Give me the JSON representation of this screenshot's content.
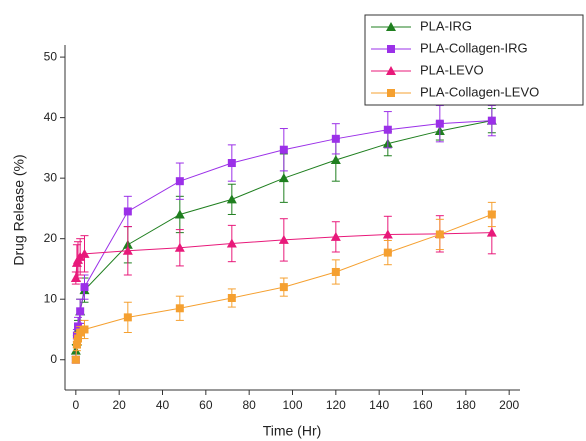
{
  "chart_data": {
    "type": "line",
    "x_label": "Time (Hr)",
    "y_label": "Drug Release (%)",
    "x": [
      0,
      0.5,
      1,
      2,
      4,
      24,
      48,
      72,
      96,
      120,
      144,
      168,
      192
    ],
    "series": [
      {
        "name": "PLA-IRG",
        "color": "#1f7f1f",
        "marker": "triangle",
        "values": [
          1.5,
          3,
          5,
          8,
          11.5,
          19,
          24,
          26.5,
          30,
          33,
          35.7,
          37.8,
          39.5
        ],
        "errors": [
          1,
          1,
          1.5,
          2,
          2,
          3,
          3,
          2.5,
          4,
          3.5,
          2,
          1.5,
          2
        ]
      },
      {
        "name": "PLA-Collagen-IRG",
        "color": "#9b30e8",
        "marker": "square",
        "values": [
          0,
          4,
          5.5,
          8,
          12,
          24.5,
          29.5,
          32.5,
          34.7,
          36.5,
          38,
          39,
          39.5
        ],
        "errors": [
          0.5,
          1,
          1.5,
          2,
          2,
          2.5,
          3,
          3,
          3.5,
          2.5,
          3,
          3,
          2.5
        ]
      },
      {
        "name": "PLA-LEVO",
        "color": "#e8197a",
        "marker": "triangle",
        "values": [
          13.5,
          16,
          16.5,
          17,
          17.5,
          18,
          18.5,
          19.2,
          19.8,
          20.3,
          20.7,
          20.8,
          21
        ],
        "errors": [
          1,
          3,
          3,
          3,
          3,
          4,
          3,
          3,
          3.5,
          2.5,
          3,
          3,
          3.5
        ]
      },
      {
        "name": "PLA-Collagen-LEVO",
        "color": "#f5a030",
        "marker": "square",
        "values": [
          0,
          2.5,
          3.5,
          4.5,
          5,
          7,
          8.5,
          10.2,
          12,
          14.5,
          17.7,
          20.7,
          24
        ],
        "errors": [
          0.5,
          1,
          1,
          1,
          1.5,
          2.5,
          2,
          1.5,
          1.5,
          2,
          2,
          2.5,
          2
        ]
      }
    ],
    "xlim": [
      -5,
      205
    ],
    "xticks": [
      0,
      20,
      40,
      60,
      80,
      100,
      120,
      140,
      160,
      180,
      200
    ],
    "ylim": [
      -5,
      52
    ],
    "yticks": [
      0,
      10,
      20,
      30,
      40,
      50
    ],
    "grid": false,
    "legend": "upper right"
  }
}
